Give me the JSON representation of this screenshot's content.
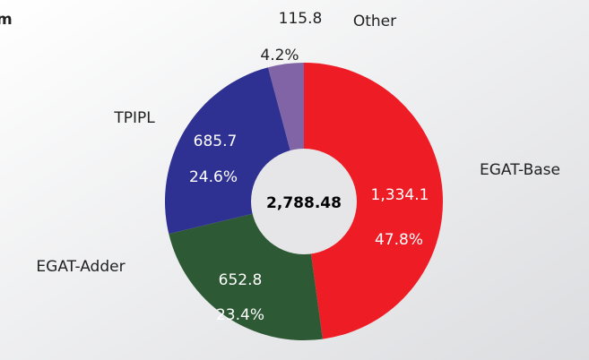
{
  "chart_data": {
    "type": "donut",
    "title": "m",
    "categories": [
      "EGAT-Base",
      "EGAT-Adder",
      "TPIPL",
      "Other"
    ],
    "values": [
      1334.1,
      652.8,
      685.7,
      115.8
    ],
    "value_labels": [
      "1,334.1",
      "652.8",
      "685.7",
      "115.8"
    ],
    "percent_labels": [
      "47.8%",
      "23.4%",
      "24.6%",
      "4.2%"
    ],
    "colors": [
      "#ee1c25",
      "#2d5a35",
      "#2e3192",
      "#8064a6"
    ],
    "center_text": "2,788.48"
  }
}
